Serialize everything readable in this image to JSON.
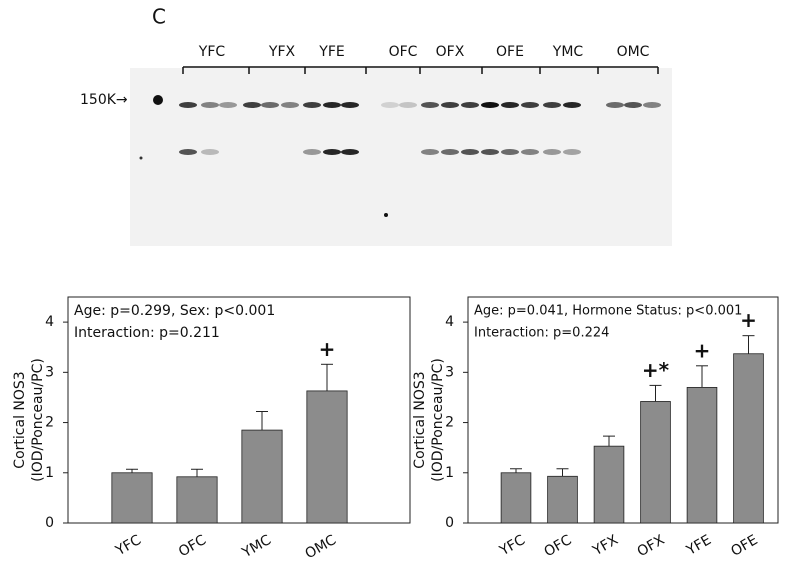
{
  "panel_label": "C",
  "blot": {
    "marker": "150K→",
    "lanes": [
      "YFC",
      "YFX",
      "YFE",
      "OFC",
      "OFX",
      "OFE",
      "YMC",
      "OMC"
    ]
  },
  "chart_data": [
    {
      "type": "bar",
      "annotations": [
        "Age: p=0.299, Sex: p<0.001",
        "Interaction: p=0.211"
      ],
      "ylabel": [
        "Cortical NOS3",
        "(IOD/Ponceau/PC)"
      ],
      "categories": [
        "YFC",
        "OFC",
        "YMC",
        "OMC"
      ],
      "values": [
        1.0,
        0.92,
        1.85,
        2.63
      ],
      "errors": [
        0.07,
        0.15,
        0.37,
        0.53
      ],
      "bar_annotations": [
        null,
        null,
        null,
        "+"
      ],
      "color": "#8c8c8c",
      "ylim": [
        0,
        4.5
      ],
      "yticks": [
        0,
        1,
        2,
        3,
        4
      ],
      "grid": false
    },
    {
      "type": "bar",
      "annotations": [
        "Age: p=0.041, Hormone Status: p<0.001",
        "Interaction: p=0.224"
      ],
      "ylabel": [
        "Cortical NOS3",
        "(IOD/Ponceau/PC)"
      ],
      "categories": [
        "YFC",
        "OFC",
        "YFX",
        "OFX",
        "YFE",
        "OFE"
      ],
      "values": [
        1.0,
        0.93,
        1.53,
        2.42,
        2.7,
        3.37
      ],
      "errors": [
        0.08,
        0.15,
        0.2,
        0.32,
        0.43,
        0.36
      ],
      "bar_annotations": [
        null,
        null,
        null,
        "+*",
        "+",
        "+"
      ],
      "color": "#8c8c8c",
      "ylim": [
        0,
        4.5
      ],
      "yticks": [
        0,
        1,
        2,
        3,
        4
      ],
      "grid": false
    }
  ]
}
